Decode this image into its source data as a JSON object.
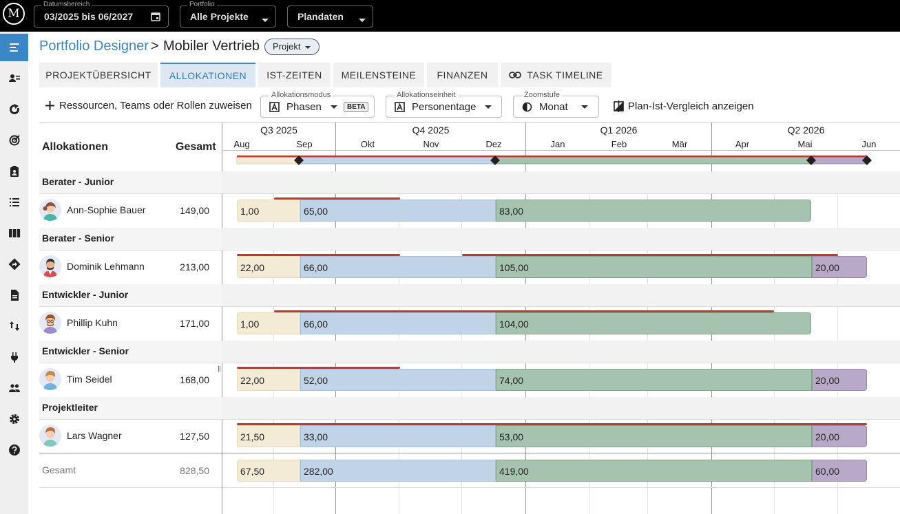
{
  "topbar": {
    "logo": "M",
    "date_range": {
      "label": "Datumsbereich",
      "value": "03/2025 bis 06/2027"
    },
    "portfolio": {
      "label": "Portfolio",
      "value": "Alle Projekte"
    },
    "data_type": {
      "value": "Plandaten"
    }
  },
  "breadcrumb": {
    "parent": "Portfolio Designer",
    "separator": ">",
    "current": "Mobiler Vertrieb",
    "type_chip": "Projekt"
  },
  "tabs": [
    {
      "label": "PROJEKTÜBERSICHT"
    },
    {
      "label": "ALLOKATIONEN",
      "active": true
    },
    {
      "label": "IST-ZEITEN"
    },
    {
      "label": "MEILENSTEINE"
    },
    {
      "label": "FINANZEN"
    },
    {
      "label": "TASK TIMELINE",
      "icon": "link-icon"
    }
  ],
  "toolbar": {
    "add_label": "Ressourcen, Teams oder Rollen zuweisen",
    "mode": {
      "label": "Allokationsmodus",
      "value": "Phasen",
      "badge": "BETA"
    },
    "unit": {
      "label": "Allokationseinheit",
      "value": "Personentage"
    },
    "zoom": {
      "label": "Zoomstufe",
      "value": "Monat"
    },
    "compare_label": "Plan-Ist-Vergleich anzeigen"
  },
  "table": {
    "col_alloc": "Allokationen",
    "col_total": "Gesamt",
    "quarters": [
      "Q3 2025",
      "Q4 2025",
      "Q1 2026",
      "Q2 2026"
    ],
    "months": [
      "Aug",
      "Sep",
      "Okt",
      "Nov",
      "Dez",
      "Jan",
      "Feb",
      "Mär",
      "Apr",
      "Mai",
      "Jun"
    ],
    "groups": [
      {
        "role": "Berater - Junior",
        "person": "Ann-Sophie Bauer",
        "total": "149,00",
        "phases": [
          "1,00",
          "65,00",
          "83,00"
        ]
      },
      {
        "role": "Berater - Senior",
        "person": "Dominik Lehmann",
        "total": "213,00",
        "phases": [
          "22,00",
          "66,00",
          "105,00",
          "20,00"
        ]
      },
      {
        "role": "Entwickler - Junior",
        "person": "Phillip Kuhn",
        "total": "171,00",
        "phases": [
          "1,00",
          "66,00",
          "104,00"
        ]
      },
      {
        "role": "Entwickler - Senior",
        "person": "Tim Seidel",
        "total": "168,00",
        "phases": [
          "22,00",
          "52,00",
          "74,00",
          "20,00"
        ]
      },
      {
        "role": "Projektleiter",
        "person": "Lars Wagner",
        "total": "127,50",
        "phases": [
          "21,50",
          "33,00",
          "53,00",
          "20,00"
        ]
      }
    ],
    "summary": {
      "label": "Gesamt",
      "total": "828,50",
      "phases": [
        "67,50",
        "282,00",
        "419,00",
        "60,00"
      ]
    }
  },
  "colors": {
    "accent": "#3b86c4",
    "phase1": "#f4ebd7",
    "phase2": "#c1d3e6",
    "phase3": "#a5c3ae",
    "phase4": "#b7a9c7",
    "overrun": "#c0392b"
  }
}
